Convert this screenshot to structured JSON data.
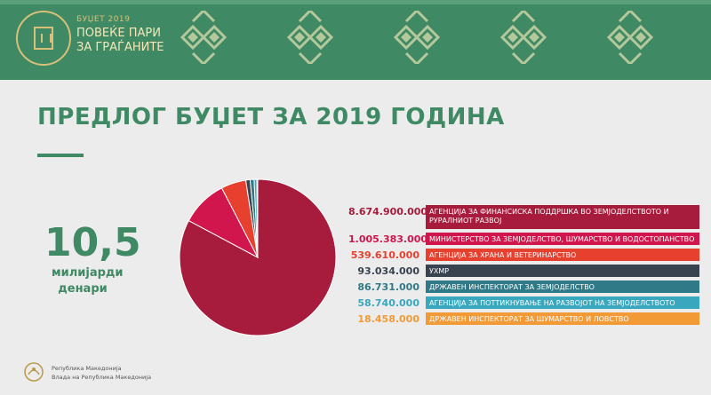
{
  "header": {
    "budget_year": "БУЏЕТ 2019",
    "slogan_line1": "ПОВЕЌЕ ПАРИ",
    "slogan_line2": "ЗА ГРАЃАНИТЕ",
    "logo_icon": "budget-door-icon",
    "background_color": "#3f8964",
    "pattern_icon": "ornament-pattern-icon"
  },
  "title": "ПРЕДЛОГ БУЏЕТ ЗА 2019 ГОДИНА",
  "total": {
    "value": "10,5",
    "unit_line1": "милијарди",
    "unit_line2": "денари"
  },
  "chart_data": {
    "type": "pie",
    "start_angle_deg": 0,
    "direction": "clockwise",
    "slices": [
      {
        "label": "АГЕНЦИЈА ЗА ФИНАНСИСКА ПОДДРШКА ВО ЗЕМЈОДЕЛСТВОТО И РУРАЛНИОТ РАЗВОЈ",
        "value": 8674900000,
        "value_label": "8.674.900.000",
        "color": "#a71c3c"
      },
      {
        "label": "МИНИСТЕРСТВО ЗА ЗЕМЈОДЕЛСТВО, ШУМАРСТВО И ВОДОСТОПАНСТВО",
        "value": 1005383000,
        "value_label": "1.005.383.000",
        "color": "#d0164c"
      },
      {
        "label": "АГЕНЦИЈА ЗА ХРАНА И ВЕТЕРИНАРСТВО",
        "value": 539610000,
        "value_label": "539.610.000",
        "color": "#e8402f"
      },
      {
        "label": "УХМР",
        "value": 93034000,
        "value_label": "93.034.000",
        "color": "#39424f"
      },
      {
        "label": "ДРЖАВЕН ИНСПЕКТОРАТ ЗА ЗЕМЈОДЕЛСТВО",
        "value": 86731000,
        "value_label": "86.731.000",
        "color": "#2f7a86"
      },
      {
        "label": "АГЕНЦИЈА ЗА ПОТТИКНУВАЊЕ НА РАЗВОЈОТ НА ЗЕМЈОДЕЛСТВОТО",
        "value": 58740000,
        "value_label": "58.740.000",
        "color": "#39a7be"
      },
      {
        "label": "ДРЖАВЕН ИНСПЕКТОРАТ ЗА ШУМАРСТВО И ЛОВСТВО",
        "value": 18458000,
        "value_label": "18.458.000",
        "color": "#f29a36"
      }
    ]
  },
  "footer": {
    "line1": "Република Македонија",
    "line2": "Влада на Република Македонија",
    "emblem_icon": "state-emblem-icon"
  }
}
